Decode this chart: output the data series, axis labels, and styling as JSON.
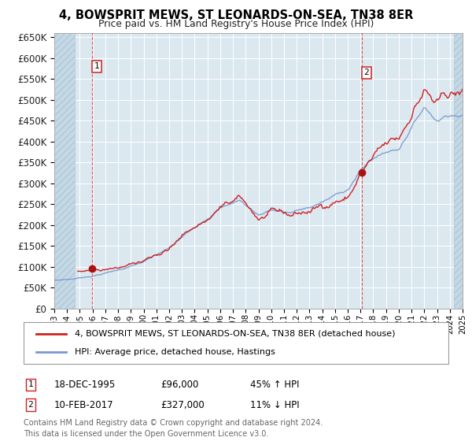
{
  "title_line1": "4, BOWSPRIT MEWS, ST LEONARDS-ON-SEA, TN38 8ER",
  "title_line2": "Price paid vs. HM Land Registry's House Price Index (HPI)",
  "sale1_price": 96000,
  "sale1_year": 1995.96,
  "sale2_price": 327000,
  "sale2_year": 2017.11,
  "price_color": "#cc2222",
  "hpi_color": "#7799cc",
  "background_color": "#dce8f0",
  "hatch_color": "#c5d8e5",
  "grid_color": "#ffffff",
  "legend_label1": "4, BOWSPRIT MEWS, ST LEONARDS-ON-SEA, TN38 8ER (detached house)",
  "legend_label2": "HPI: Average price, detached house, Hastings",
  "sale1_note_col1": "18-DEC-1995",
  "sale1_note_col2": "£96,000",
  "sale1_note_col3": "45% ↑ HPI",
  "sale2_note_col1": "10-FEB-2017",
  "sale2_note_col2": "£327,000",
  "sale2_note_col3": "11% ↓ HPI",
  "footer": "Contains HM Land Registry data © Crown copyright and database right 2024.\nThis data is licensed under the Open Government Licence v3.0.",
  "ylim": [
    0,
    660000
  ],
  "xstart": 1993,
  "xend": 2025
}
